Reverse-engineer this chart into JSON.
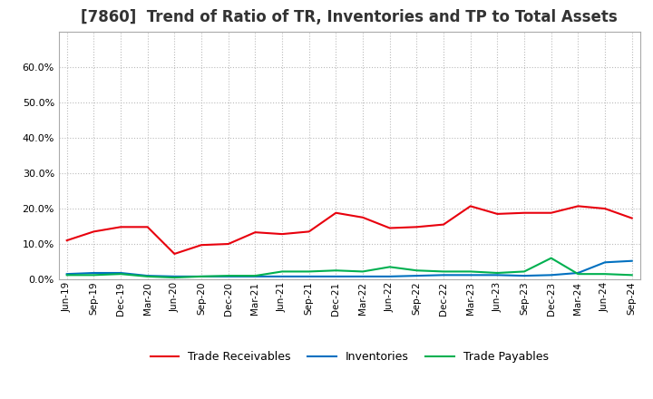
{
  "title": "[7860]  Trend of Ratio of TR, Inventories and TP to Total Assets",
  "labels": [
    "Jun-19",
    "Sep-19",
    "Dec-19",
    "Mar-20",
    "Jun-20",
    "Sep-20",
    "Dec-20",
    "Mar-21",
    "Jun-21",
    "Sep-21",
    "Dec-21",
    "Mar-22",
    "Jun-22",
    "Sep-22",
    "Dec-22",
    "Mar-23",
    "Jun-23",
    "Sep-23",
    "Dec-23",
    "Mar-24",
    "Jun-24",
    "Sep-24"
  ],
  "trade_receivables": [
    0.11,
    0.135,
    0.148,
    0.148,
    0.072,
    0.097,
    0.1,
    0.133,
    0.128,
    0.135,
    0.188,
    0.175,
    0.145,
    0.148,
    0.155,
    0.207,
    0.185,
    0.188,
    0.188,
    0.207,
    0.2,
    0.173
  ],
  "inventories": [
    0.015,
    0.018,
    0.018,
    0.01,
    0.008,
    0.008,
    0.008,
    0.008,
    0.008,
    0.008,
    0.008,
    0.008,
    0.008,
    0.01,
    0.012,
    0.012,
    0.012,
    0.01,
    0.012,
    0.018,
    0.048,
    0.052
  ],
  "trade_payables": [
    0.012,
    0.012,
    0.015,
    0.008,
    0.005,
    0.008,
    0.01,
    0.01,
    0.022,
    0.022,
    0.025,
    0.022,
    0.035,
    0.025,
    0.022,
    0.022,
    0.018,
    0.022,
    0.06,
    0.015,
    0.015,
    0.012
  ],
  "tr_color": "#e8000d",
  "inv_color": "#0070c0",
  "tp_color": "#00b050",
  "ylim": [
    0.0,
    0.7
  ],
  "yticks": [
    0.0,
    0.1,
    0.2,
    0.3,
    0.4,
    0.5,
    0.6
  ],
  "bg_color": "#ffffff",
  "plot_bg_color": "#ffffff",
  "grid_color": "#bbbbbb",
  "title_fontsize": 12
}
